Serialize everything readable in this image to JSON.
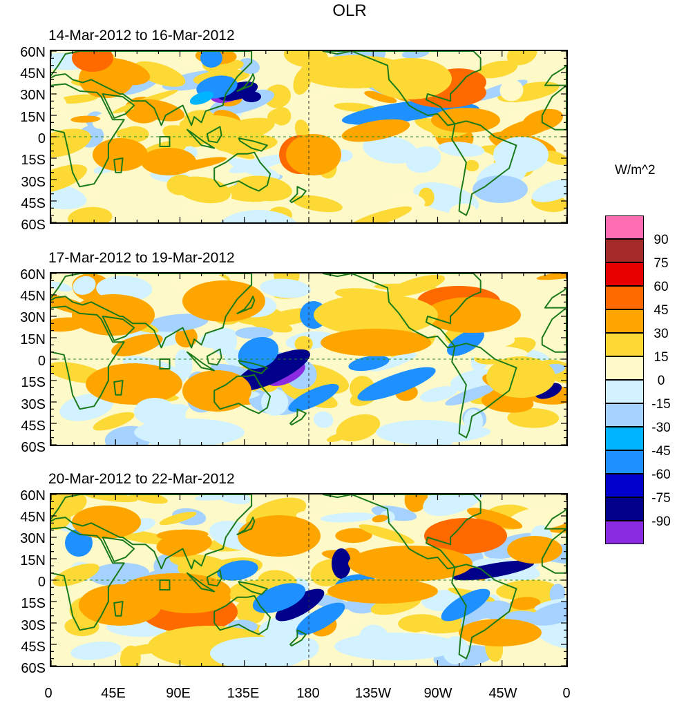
{
  "title": "OLR",
  "panels": [
    {
      "label": "14-Mar-2012 to 16-Mar-2012"
    },
    {
      "label": "17-Mar-2012 to 19-Mar-2012"
    },
    {
      "label": "20-Mar-2012 to 22-Mar-2012"
    }
  ],
  "lat_labels": [
    "60N",
    "45N",
    "30N",
    "15N",
    "0",
    "15S",
    "30S",
    "45S",
    "60S"
  ],
  "lon_labels": [
    "0",
    "45E",
    "90E",
    "135E",
    "180",
    "135W",
    "90W",
    "45W",
    "0"
  ],
  "colorbar": {
    "units": "W/m^2",
    "levels": [
      "90",
      "75",
      "60",
      "45",
      "30",
      "15",
      "0",
      "-15",
      "-30",
      "-45",
      "-60",
      "-75",
      "-90"
    ],
    "colors": [
      "#ff6eb4",
      "#a52a2a",
      "#e60000",
      "#ff6a00",
      "#ffa500",
      "#fcd935",
      "#fffac8",
      "#d2f2ff",
      "#a6d2ff",
      "#00b4ff",
      "#1e90ff",
      "#0000cd",
      "#00008b",
      "#8a2be2"
    ]
  },
  "map_colors": {
    "coast": "#1a7a1a",
    "grid_dash": "#228b22"
  }
}
